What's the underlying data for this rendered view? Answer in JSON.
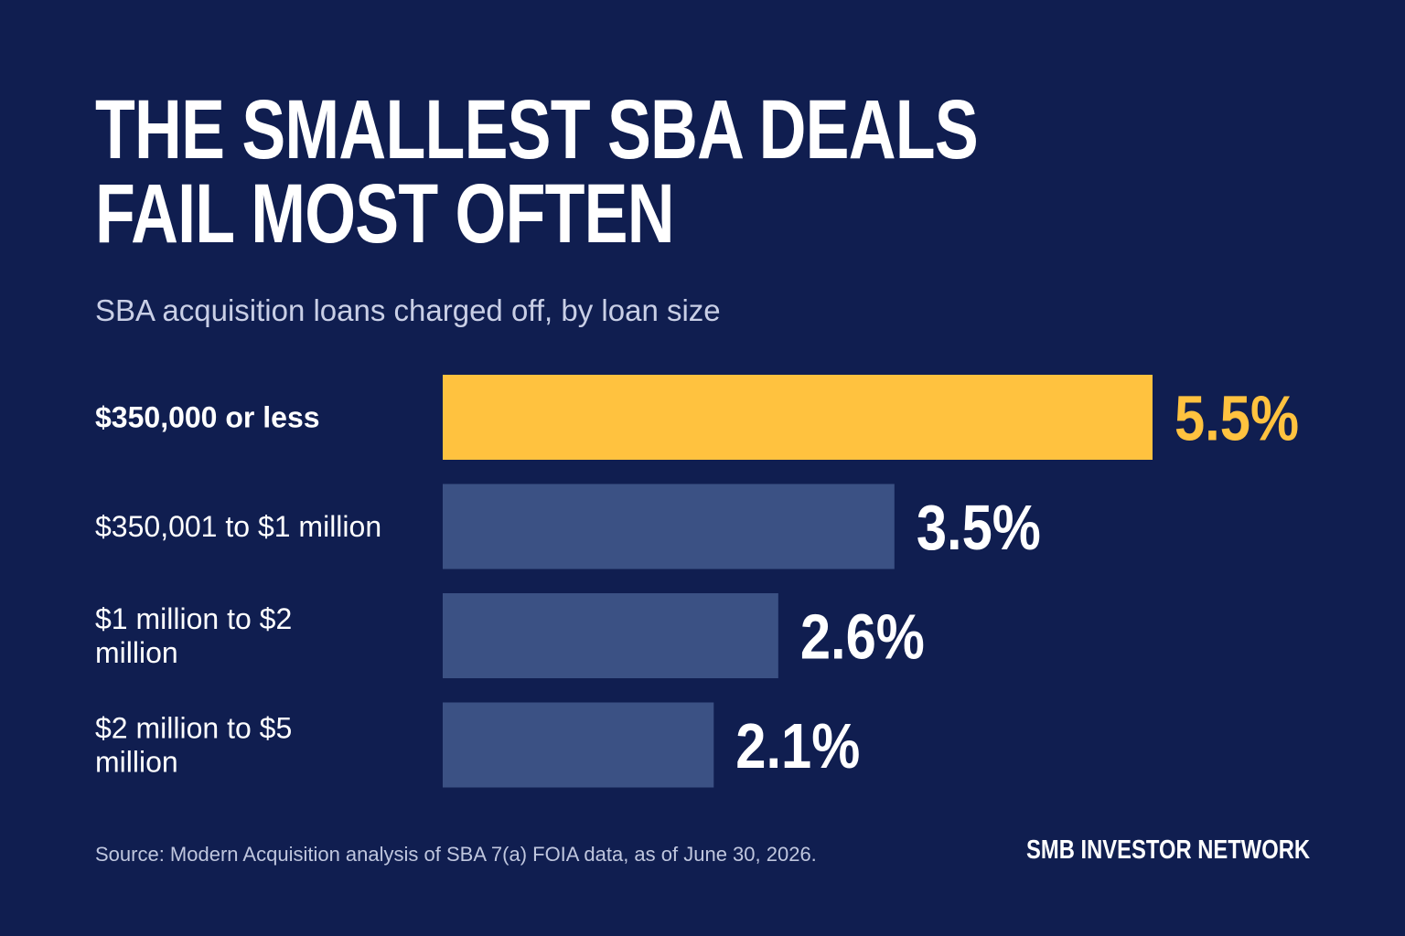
{
  "title": "THE SMALLEST SBA DEALS FAIL MOST OFTEN",
  "subtitle": "SBA acquisition loans charged off, by loan size",
  "source": "Source: Modern Acquisition analysis of SBA 7(a) FOIA data, as of June 30, 2026.",
  "brand": "SMB INVESTOR NETWORK",
  "colors": {
    "background": "#101e50",
    "highlight": "#ffc23f",
    "bar": "#3b5184",
    "text": "#ffffff"
  },
  "chart_data": {
    "type": "bar",
    "orientation": "horizontal",
    "title": "THE SMALLEST SBA DEALS FAIL MOST OFTEN",
    "subtitle": "SBA acquisition loans charged off, by loan size",
    "categories": [
      "$350,000 or less",
      "$350,001 to $1 million",
      "$1 million to $2 million",
      "$2 million to $5 million"
    ],
    "values": [
      5.5,
      3.5,
      2.6,
      2.1
    ],
    "value_labels": [
      "5.5%",
      "3.5%",
      "2.6%",
      "2.1%"
    ],
    "highlight_index": 0,
    "xlim": [
      0,
      5.5
    ],
    "grid": false,
    "legend": "none"
  }
}
